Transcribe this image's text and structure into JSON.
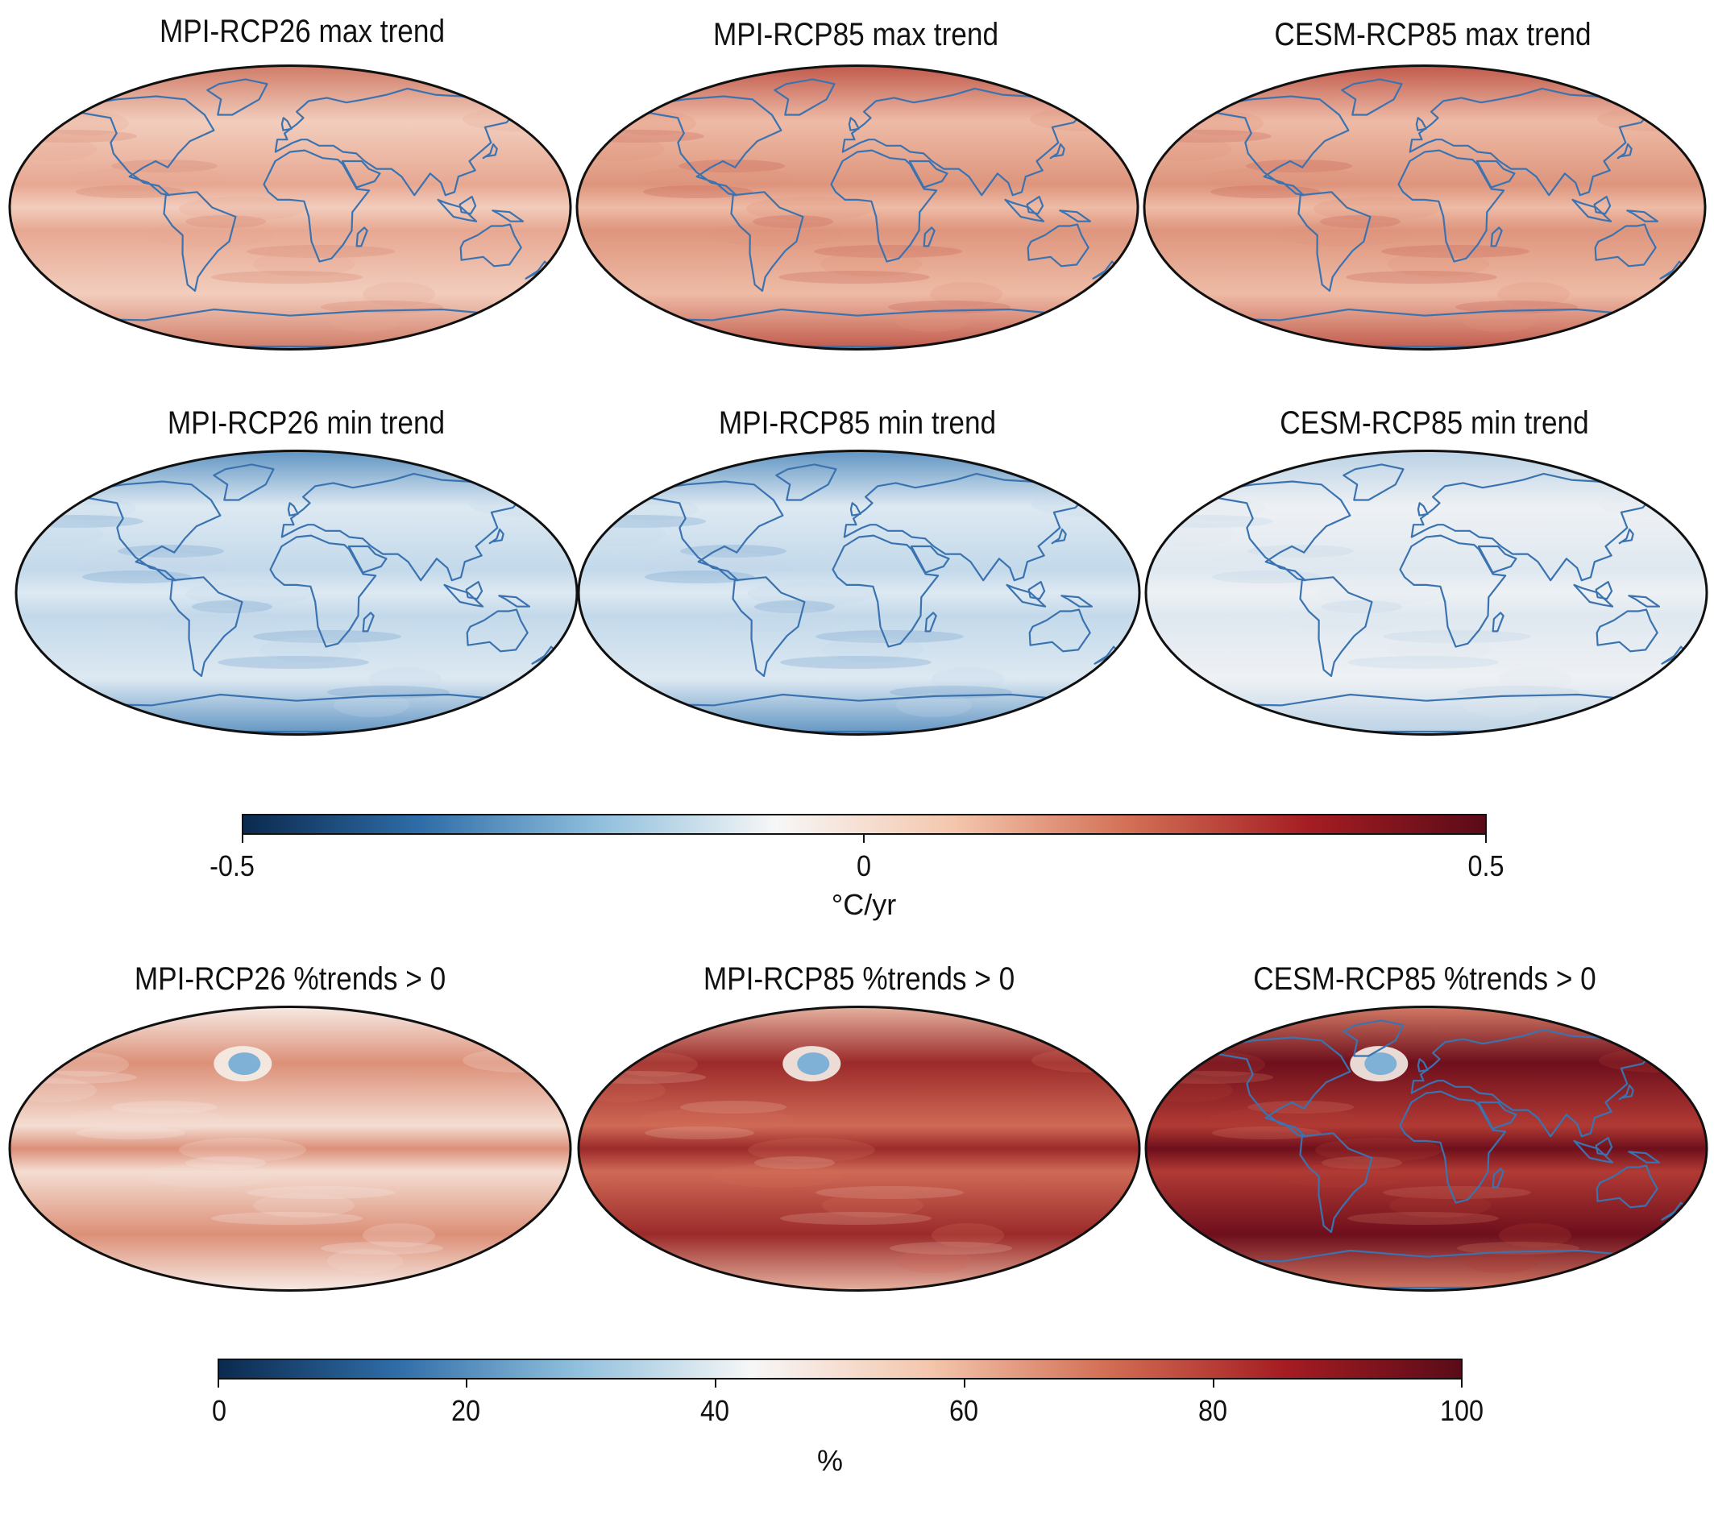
{
  "rows": [
    {
      "panels": [
        {
          "title": "MPI-RCP26 max trend",
          "field": "warm_light",
          "coast": true
        },
        {
          "title": "MPI-RCP85 max trend",
          "field": "warm_medium",
          "coast": true
        },
        {
          "title": "CESM-RCP85 max trend",
          "field": "warm_medium",
          "coast": true
        }
      ]
    },
    {
      "panels": [
        {
          "title": "MPI-RCP26 min trend",
          "field": "cool_light",
          "coast": true
        },
        {
          "title": "MPI-RCP85 min trend",
          "field": "cool_light",
          "coast": true
        },
        {
          "title": "CESM-RCP85 min trend",
          "field": "neutral",
          "coast": true
        }
      ]
    },
    {
      "panels": [
        {
          "title": "MPI-RCP26 %trends > 0",
          "field": "pct_medium",
          "coast": false
        },
        {
          "title": "MPI-RCP85 %trends > 0",
          "field": "pct_dark",
          "coast": false
        },
        {
          "title": "CESM-RCP85 %trends > 0",
          "field": "pct_darkest",
          "coast": true
        }
      ]
    }
  ],
  "colorbar_trend": {
    "ticks": [
      "-0.5",
      "0",
      "0.5"
    ],
    "range": [
      -0.5,
      0.5
    ],
    "label": "°C/yr",
    "colormap": "RdBu_r"
  },
  "colorbar_pct": {
    "ticks": [
      "0",
      "20",
      "40",
      "60",
      "80",
      "100"
    ],
    "range": [
      0,
      100
    ],
    "label": "%",
    "colormap": "RdBu_r"
  },
  "colors": {
    "coastline": "#3a73b0",
    "outline": "#111111",
    "cmap_stops": [
      "#0b2a4e",
      "#2f6da8",
      "#8fbfdc",
      "#f7f7f7",
      "#f4c7ad",
      "#d26f55",
      "#a51d22",
      "#5a0b18"
    ]
  }
}
